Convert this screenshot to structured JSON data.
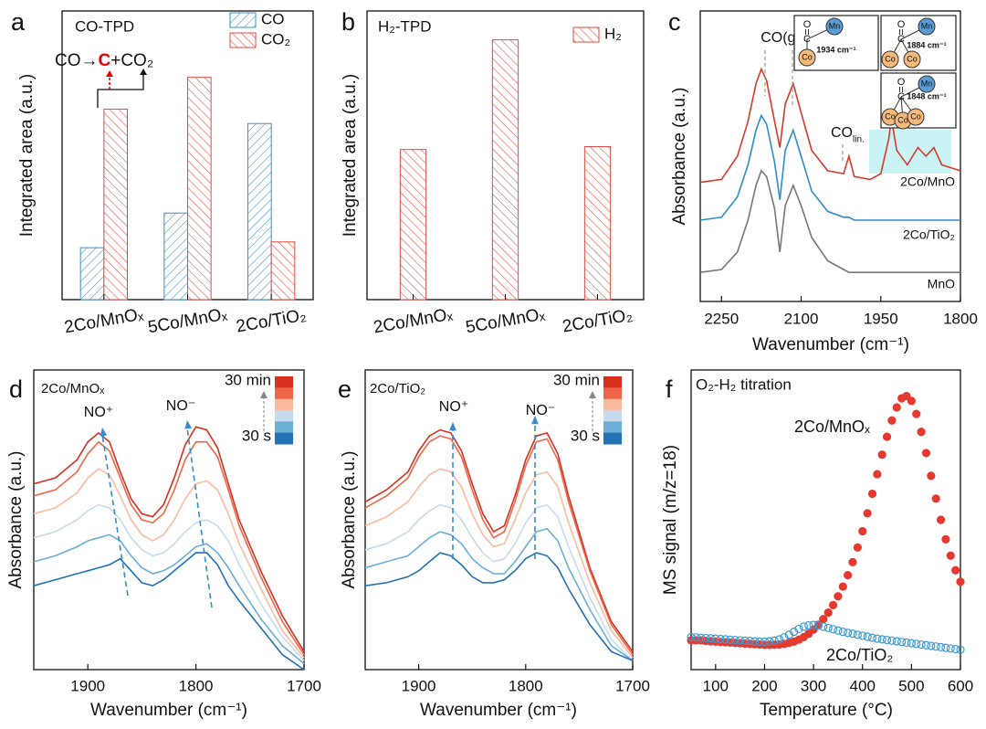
{
  "chart_data": [
    {
      "type": "bar",
      "panel_label": "a",
      "title": "CO-TPD",
      "y_label": "Integrated area (a.u.)",
      "categories": [
        "2Co/MnOₓ",
        "5Co/MnOₓ",
        "2Co/TiO₂"
      ],
      "series": [
        {
          "name": "CO",
          "color": "#3f8fcc",
          "values": [
            18,
            30,
            61
          ]
        },
        {
          "name": "CO₂",
          "color": "#e2493f",
          "values": [
            66,
            77,
            20
          ]
        }
      ],
      "ylim": [
        0,
        100
      ],
      "legend": "upper right",
      "annotation": [
        "CO→",
        "C",
        "+CO₂"
      ]
    },
    {
      "type": "bar",
      "panel_label": "b",
      "title": "H₂-TPD",
      "y_label": "Integrated area (a.u.)",
      "categories": [
        "2Co/MnOₓ",
        "5Co/MnOₓ",
        "2Co/TiO₂"
      ],
      "series": [
        {
          "name": "H₂",
          "color": "#e2493f",
          "values": [
            52,
            90,
            53
          ]
        }
      ],
      "ylim": [
        0,
        100
      ],
      "legend": "upper right"
    },
    {
      "type": "line",
      "panel_label": "c",
      "y_label": "Absorbance (a.u.)",
      "x_label": "Wavenumber (cm⁻¹)",
      "xlim": [
        2290,
        1800
      ],
      "xticks": [
        2250,
        2100,
        1950,
        1800
      ],
      "ylim": [
        0,
        100
      ],
      "x": [
        2290,
        2250,
        2220,
        2200,
        2185,
        2175,
        2165,
        2150,
        2140,
        2130,
        2115,
        2100,
        2080,
        2050,
        2020,
        2010,
        2000,
        1970,
        1950,
        1935,
        1930,
        1920,
        1900,
        1880,
        1865,
        1850,
        1835,
        1800
      ],
      "series": [
        {
          "name": "2Co/MnO",
          "color": "#d9382b",
          "values": [
            41,
            42,
            50,
            62,
            75,
            80,
            76,
            62,
            53,
            68,
            75,
            65,
            52,
            45,
            44,
            50,
            43,
            42,
            44,
            56,
            63,
            52,
            47,
            53,
            50,
            53,
            47,
            45
          ]
        },
        {
          "name": "2Co/TiO₂",
          "color": "#2f8ccc",
          "values": [
            28,
            29,
            36,
            47,
            59,
            64,
            61,
            48,
            35,
            52,
            59,
            50,
            38,
            31,
            29,
            29,
            28,
            28,
            28,
            28,
            28,
            28,
            28,
            28,
            28,
            28,
            28,
            28
          ]
        },
        {
          "name": "MnO",
          "color": "#777777",
          "values": [
            10,
            11,
            17,
            28,
            40,
            45,
            43,
            32,
            17,
            33,
            40,
            33,
            22,
            14,
            11,
            10,
            10,
            10,
            10,
            10,
            10,
            10,
            10,
            10,
            10,
            10,
            10,
            10
          ]
        }
      ],
      "annotations": [
        "CO(g)",
        "CO",
        "lin."
      ],
      "insets": [
        {
          "label": "1934 cm⁻¹",
          "atoms": [
            "O",
            "C",
            "Mn",
            "Co"
          ]
        },
        {
          "label": "1884 cm⁻¹",
          "atoms": [
            "O",
            "C",
            "Mn",
            "Co",
            "Co"
          ]
        },
        {
          "label": "1848 cm⁻¹",
          "atoms": [
            "O",
            "C",
            "Mn",
            "Co",
            "Co",
            "Co"
          ]
        }
      ]
    },
    {
      "type": "line",
      "panel_label": "d",
      "title": "2Co/MnOₓ",
      "y_label": "Absorbance (a.u.)",
      "x_label": "Wavenumber (cm⁻¹)",
      "xlim": [
        1950,
        1700
      ],
      "xticks": [
        1900,
        1800,
        1700
      ],
      "ylim": [
        0,
        100
      ],
      "x": [
        1950,
        1930,
        1910,
        1900,
        1890,
        1880,
        1870,
        1860,
        1850,
        1840,
        1830,
        1820,
        1810,
        1800,
        1790,
        1780,
        1770,
        1760,
        1740,
        1720,
        1700
      ],
      "series": [
        {
          "color": "#d7301f",
          "values": [
            62,
            64,
            70,
            76,
            79,
            76,
            66,
            57,
            52,
            51,
            55,
            64,
            75,
            81,
            80,
            74,
            62,
            50,
            33,
            18,
            6
          ]
        },
        {
          "color": "#ef6548",
          "values": [
            58,
            60,
            66,
            72,
            76,
            73,
            64,
            55,
            50,
            49,
            52,
            60,
            70,
            76,
            76,
            71,
            60,
            48,
            31,
            16,
            5
          ]
        },
        {
          "color": "#fcbba1",
          "values": [
            52,
            54,
            59,
            64,
            67,
            65,
            58,
            50,
            45,
            43,
            45,
            50,
            57,
            62,
            63,
            60,
            52,
            42,
            27,
            13,
            4
          ]
        },
        {
          "color": "#c6dbef",
          "values": [
            44,
            46,
            50,
            53,
            55,
            54,
            50,
            44,
            40,
            38,
            39,
            42,
            46,
            49,
            50,
            48,
            43,
            35,
            22,
            11,
            3
          ]
        },
        {
          "color": "#6baed6",
          "values": [
            36,
            38,
            41,
            43,
            44,
            45,
            43,
            38,
            34,
            32,
            33,
            35,
            38,
            41,
            42,
            39,
            34,
            28,
            17,
            8,
            2
          ]
        },
        {
          "color": "#2171b5",
          "values": [
            28,
            30,
            32,
            33,
            34,
            35,
            37,
            33,
            29,
            28,
            30,
            33,
            36,
            39,
            39,
            35,
            28,
            23,
            14,
            5,
            0
          ]
        }
      ],
      "peak_labels": [
        "NO⁺",
        "NO⁻"
      ],
      "colorbar_labels": [
        "30 min",
        "30 s"
      ]
    },
    {
      "type": "line",
      "panel_label": "e",
      "title": "2Co/TiO₂",
      "y_label": "Absorbance (a.u.)",
      "x_label": "Wavenumber (cm⁻¹)",
      "xlim": [
        1950,
        1700
      ],
      "xticks": [
        1900,
        1800,
        1700
      ],
      "ylim": [
        0,
        100
      ],
      "x": [
        1950,
        1930,
        1910,
        1900,
        1890,
        1880,
        1870,
        1860,
        1850,
        1840,
        1830,
        1820,
        1810,
        1800,
        1790,
        1780,
        1770,
        1760,
        1740,
        1720,
        1700
      ],
      "series": [
        {
          "color": "#d7301f",
          "values": [
            56,
            60,
            66,
            73,
            78,
            80,
            79,
            73,
            62,
            52,
            46,
            48,
            58,
            70,
            78,
            79,
            72,
            58,
            34,
            16,
            6
          ]
        },
        {
          "color": "#ef6548",
          "values": [
            54,
            58,
            64,
            71,
            76,
            78,
            77,
            71,
            60,
            50,
            44,
            46,
            56,
            68,
            76,
            77,
            70,
            56,
            33,
            15,
            5
          ]
        },
        {
          "color": "#fcbba1",
          "values": [
            48,
            51,
            56,
            61,
            65,
            67,
            66,
            61,
            52,
            45,
            41,
            42,
            50,
            59,
            65,
            66,
            61,
            49,
            29,
            13,
            4
          ]
        },
        {
          "color": "#c6dbef",
          "values": [
            40,
            42,
            46,
            50,
            53,
            55,
            54,
            50,
            44,
            39,
            36,
            37,
            42,
            49,
            54,
            55,
            51,
            41,
            24,
            10,
            3
          ]
        },
        {
          "color": "#6baed6",
          "values": [
            34,
            36,
            38,
            41,
            44,
            46,
            45,
            42,
            37,
            34,
            32,
            32,
            36,
            41,
            46,
            47,
            43,
            34,
            20,
            8,
            3
          ]
        },
        {
          "color": "#2171b5",
          "values": [
            28,
            29,
            31,
            33,
            36,
            39,
            38,
            35,
            31,
            29,
            29,
            30,
            33,
            37,
            39,
            38,
            34,
            27,
            15,
            6,
            3
          ]
        }
      ],
      "peak_labels": [
        "NO⁺",
        "NO⁻"
      ],
      "colorbar_labels": [
        "30 min",
        "30 s"
      ]
    },
    {
      "type": "scatter",
      "panel_label": "f",
      "title": "O₂-H₂ titration",
      "y_label": "MS signal (m/z=18)",
      "x_label": "Temperature (°C)",
      "xlim": [
        50,
        600
      ],
      "xticks": [
        100,
        200,
        300,
        400,
        500,
        600
      ],
      "ylim": [
        8,
        100
      ],
      "x": [
        50,
        60,
        70,
        80,
        90,
        100,
        110,
        120,
        130,
        140,
        150,
        160,
        170,
        180,
        190,
        200,
        210,
        220,
        230,
        240,
        250,
        260,
        270,
        280,
        290,
        300,
        310,
        320,
        330,
        340,
        350,
        360,
        370,
        380,
        390,
        400,
        410,
        420,
        430,
        440,
        450,
        460,
        470,
        480,
        490,
        500,
        510,
        520,
        530,
        540,
        550,
        560,
        570,
        580,
        590,
        600
      ],
      "series": [
        {
          "name": "2Co/MnOₓ",
          "color": "#e5392f",
          "marker": "filled",
          "values": [
            17,
            17,
            17,
            16.8,
            16.7,
            16.6,
            16.5,
            16.4,
            16.3,
            16.2,
            16.1,
            16,
            15.9,
            15.8,
            15.7,
            15.6,
            15.6,
            15.6,
            15.7,
            15.9,
            16.2,
            16.6,
            17.2,
            18,
            19,
            20.3,
            21.8,
            23.5,
            25.5,
            27.8,
            30.5,
            33.5,
            37,
            41,
            45.5,
            50.5,
            56,
            62,
            68,
            74,
            79.5,
            84.5,
            88.5,
            91.3,
            92,
            90.5,
            86.5,
            81,
            74.5,
            67.5,
            60.5,
            54,
            48,
            43,
            38.5,
            35
          ]
        },
        {
          "name": "2Co/TiO₂",
          "color": "#3b9ad6",
          "marker": "open",
          "values": [
            18,
            17.9,
            17.8,
            17.7,
            17.6,
            17.5,
            17.4,
            17.3,
            17.2,
            17.1,
            17,
            16.9,
            16.8,
            16.7,
            16.6,
            16.6,
            16.7,
            16.9,
            17.3,
            17.9,
            18.7,
            19.6,
            20.5,
            21.2,
            21.6,
            21.7,
            21.5,
            21.2,
            20.8,
            20.4,
            20.0,
            19.6,
            19.3,
            19.0,
            18.7,
            18.4,
            18.1,
            17.8,
            17.5,
            17.3,
            17.1,
            16.9,
            16.7,
            16.5,
            16.3,
            16.1,
            15.9,
            15.7,
            15.5,
            15.3,
            15.1,
            14.9,
            14.7,
            14.5,
            14.3,
            14.1
          ]
        }
      ]
    }
  ]
}
